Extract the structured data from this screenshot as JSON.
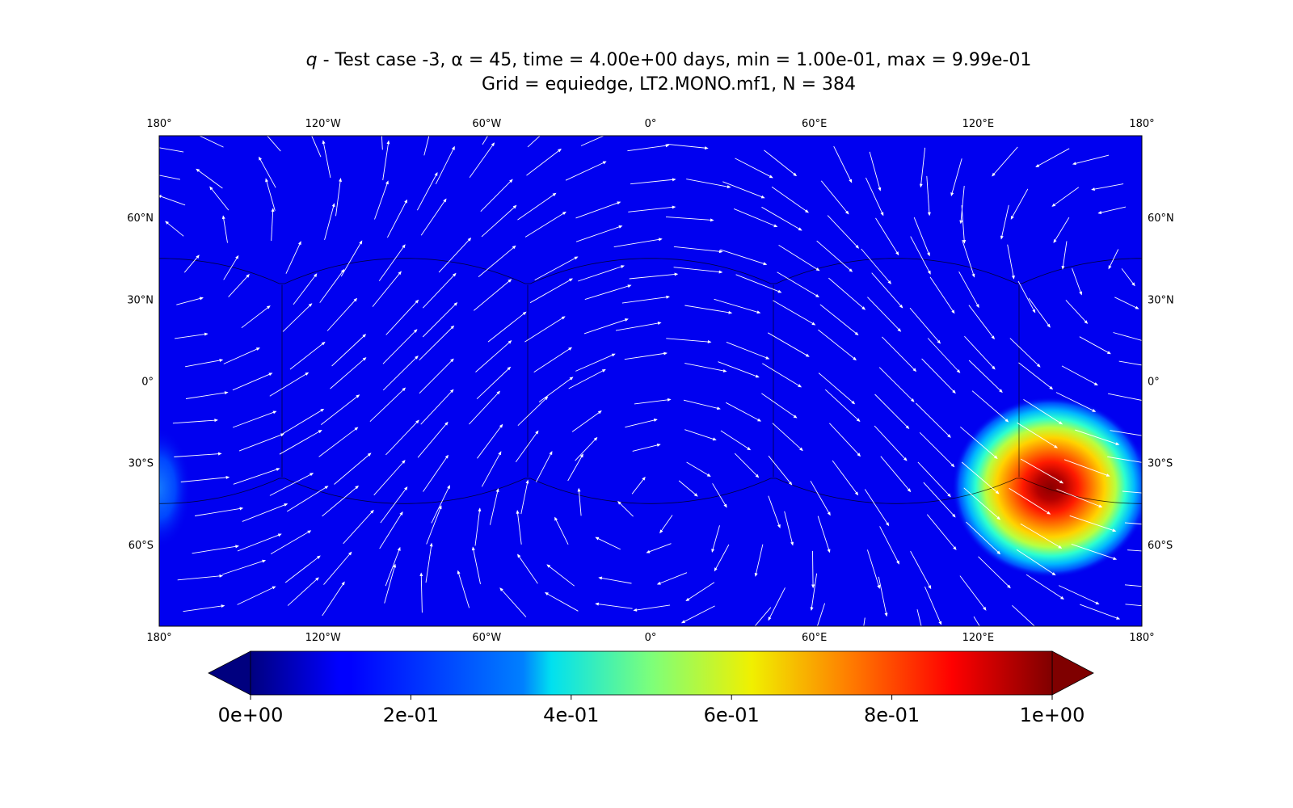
{
  "title": {
    "variable": "q",
    "line1_rest": " - Test case -3, α = 45, time = 4.00e+00 days, min = 1.00e-01, max = 9.99e-01",
    "line2": "Grid = equiedge, LT2.MONO.mf1, N = 384"
  },
  "map": {
    "lon_ticks": [
      "180°",
      "120°W",
      "60°W",
      "0°",
      "60°E",
      "120°E",
      "180°"
    ],
    "lat_ticks": [
      "60°N",
      "30°N",
      "0°",
      "30°S",
      "60°S"
    ],
    "background_color": "#0000f0",
    "arrow_color": "#ffffff",
    "blob": {
      "center_lon": 145,
      "center_lat": -38,
      "peak": 0.999,
      "min": 0.1
    }
  },
  "colorbar": {
    "colormap": "jet",
    "ticks": [
      "0e+00",
      "2e-01",
      "4e-01",
      "6e-01",
      "8e-01",
      "1e+00"
    ],
    "range": [
      0,
      1
    ],
    "extend": "both"
  }
}
